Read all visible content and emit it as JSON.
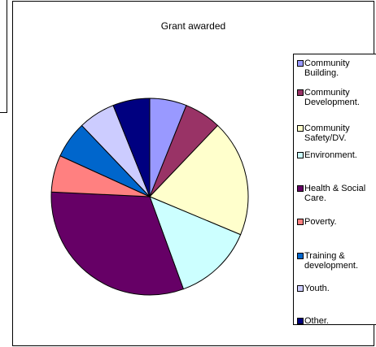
{
  "chart_data": {
    "type": "pie",
    "title": "Grant awarded",
    "categories": [
      "Community Building.",
      "Community Development.",
      "Community Safety/DV.",
      "Environment.",
      "Health & Social Care.",
      "Poverty.",
      "Training & development.",
      "Youth.",
      "Other."
    ],
    "values": [
      6,
      6,
      19,
      13,
      31,
      6,
      6,
      6,
      6
    ],
    "colors": [
      "#9999ff",
      "#993366",
      "#ffffcc",
      "#ccffff",
      "#660066",
      "#ff8080",
      "#0066cc",
      "#ccccff",
      "#000080"
    ],
    "legend_position": "right",
    "start": "12 o'clock, clockwise"
  }
}
